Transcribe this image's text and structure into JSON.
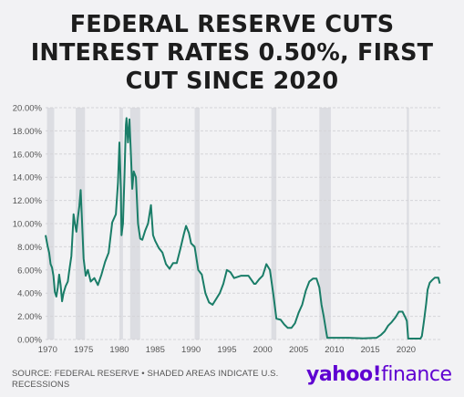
{
  "title_lines": [
    "FEDERAL RESERVE CUTS",
    "INTEREST RATES 0.50%, FIRST",
    "CUT SINCE 2020"
  ],
  "source_text": "SOURCE: FEDERAL RESERVE • SHADED AREAS INDICATE U.S. RECESSIONS",
  "brand": {
    "yahoo": "yahoo!",
    "finance": "finance"
  },
  "colors": {
    "line": "#1a7d68",
    "recession": "#dcdde2",
    "grid": "#d4d4d8",
    "brand": "#5f01d1"
  },
  "chart_data": {
    "type": "line",
    "title": "FEDERAL RESERVE CUTS INTEREST RATES 0.50%, FIRST CUT SINCE 2020",
    "xlim": [
      1969.7,
      2024.9
    ],
    "ylim": [
      0,
      20
    ],
    "x_ticks": [
      1970,
      1975,
      1980,
      1985,
      1990,
      1995,
      2000,
      2005,
      2010,
      2015,
      2020
    ],
    "x_tick_labels": [
      "1970",
      "1975",
      "1980",
      "1985",
      "1990",
      "1995",
      "2000",
      "2005",
      "2010",
      "2015",
      "2020"
    ],
    "y_ticks": [
      0,
      2,
      4,
      6,
      8,
      10,
      12,
      14,
      16,
      18,
      20
    ],
    "y_tick_labels": [
      "0.00%",
      "2.00%",
      "4.00%",
      "6.00%",
      "8.00%",
      "10.00%",
      "12.00%",
      "14.00%",
      "16.00%",
      "18.00%",
      "20.00%"
    ],
    "grid": "horizontal",
    "recessions": [
      [
        1969.9,
        1970.9
      ],
      [
        1973.9,
        1975.2
      ],
      [
        1980.0,
        1980.5
      ],
      [
        1981.5,
        1982.9
      ],
      [
        1990.5,
        1991.2
      ],
      [
        2001.2,
        2001.9
      ],
      [
        2007.9,
        2009.5
      ],
      [
        2020.1,
        2020.4
      ]
    ],
    "series": [
      {
        "x": [
          1969.7,
          1970.0,
          1970.2,
          1970.4,
          1970.6,
          1970.8,
          1971.0,
          1971.2,
          1971.4,
          1971.6,
          1971.8,
          1972.0,
          1972.2,
          1972.5,
          1972.8,
          1973.0,
          1973.3,
          1973.5,
          1973.6,
          1973.8,
          1974.0,
          1974.2,
          1974.4,
          1974.6,
          1974.8,
          1975.0,
          1975.3,
          1975.6,
          1976.0,
          1976.5,
          1977.0,
          1977.5,
          1978.0,
          1978.5,
          1979.0,
          1979.5,
          1979.8,
          1980.0,
          1980.2,
          1980.3,
          1980.5,
          1980.7,
          1980.9,
          1981.0,
          1981.2,
          1981.4,
          1981.6,
          1981.8,
          1982.0,
          1982.3,
          1982.6,
          1982.9,
          1983.2,
          1983.6,
          1984.0,
          1984.4,
          1984.7,
          1985.0,
          1985.5,
          1986.0,
          1986.5,
          1987.0,
          1987.5,
          1988.0,
          1988.5,
          1989.0,
          1989.3,
          1989.7,
          1990.0,
          1990.5,
          1991.0,
          1991.5,
          1992.0,
          1992.5,
          1993.0,
          1994.0,
          1994.5,
          1995.0,
          1995.5,
          1996.0,
          1997.0,
          1998.0,
          1998.8,
          1999.0,
          1999.5,
          2000.0,
          2000.5,
          2001.0,
          2001.5,
          2001.9,
          2002.5,
          2003.0,
          2003.5,
          2004.0,
          2004.5,
          2005.0,
          2005.5,
          2006.0,
          2006.5,
          2007.0,
          2007.5,
          2007.9,
          2008.2,
          2008.5,
          2008.9,
          2009.0,
          2010.0,
          2012.0,
          2014.0,
          2015.9,
          2016.5,
          2017.0,
          2017.5,
          2018.0,
          2018.5,
          2019.0,
          2019.5,
          2019.9,
          2020.1,
          2020.3,
          2021.0,
          2022.0,
          2022.2,
          2022.5,
          2022.8,
          2023.0,
          2023.3,
          2023.6,
          2024.0,
          2024.5,
          2024.7
        ],
        "y": [
          9.0,
          8.0,
          7.5,
          6.5,
          6.2,
          5.5,
          4.1,
          3.7,
          4.5,
          5.6,
          4.7,
          3.3,
          4.0,
          4.6,
          5.0,
          5.9,
          7.2,
          9.5,
          10.8,
          10.0,
          9.3,
          10.5,
          11.5,
          12.9,
          10.0,
          7.0,
          5.5,
          6.0,
          5.0,
          5.3,
          4.7,
          5.6,
          6.7,
          7.5,
          10.1,
          10.8,
          13.5,
          17.0,
          13.0,
          9.0,
          10.0,
          14.0,
          18.5,
          19.1,
          17.0,
          19.0,
          16.0,
          13.0,
          14.5,
          14.0,
          10.0,
          8.7,
          8.6,
          9.4,
          10.0,
          11.6,
          9.0,
          8.5,
          7.9,
          7.5,
          6.5,
          6.1,
          6.6,
          6.6,
          7.8,
          9.1,
          9.8,
          9.2,
          8.3,
          8.0,
          6.0,
          5.6,
          4.0,
          3.2,
          3.0,
          4.0,
          4.8,
          6.0,
          5.8,
          5.3,
          5.5,
          5.5,
          4.8,
          4.8,
          5.2,
          5.5,
          6.5,
          6.0,
          3.8,
          1.8,
          1.7,
          1.3,
          1.0,
          1.0,
          1.4,
          2.3,
          3.0,
          4.2,
          5.0,
          5.25,
          5.25,
          4.5,
          3.0,
          2.0,
          0.5,
          0.15,
          0.15,
          0.15,
          0.1,
          0.15,
          0.4,
          0.7,
          1.2,
          1.5,
          1.9,
          2.4,
          2.4,
          1.9,
          1.6,
          0.08,
          0.08,
          0.08,
          0.3,
          1.6,
          3.1,
          4.3,
          4.9,
          5.1,
          5.33,
          5.33,
          4.83
        ]
      }
    ]
  }
}
